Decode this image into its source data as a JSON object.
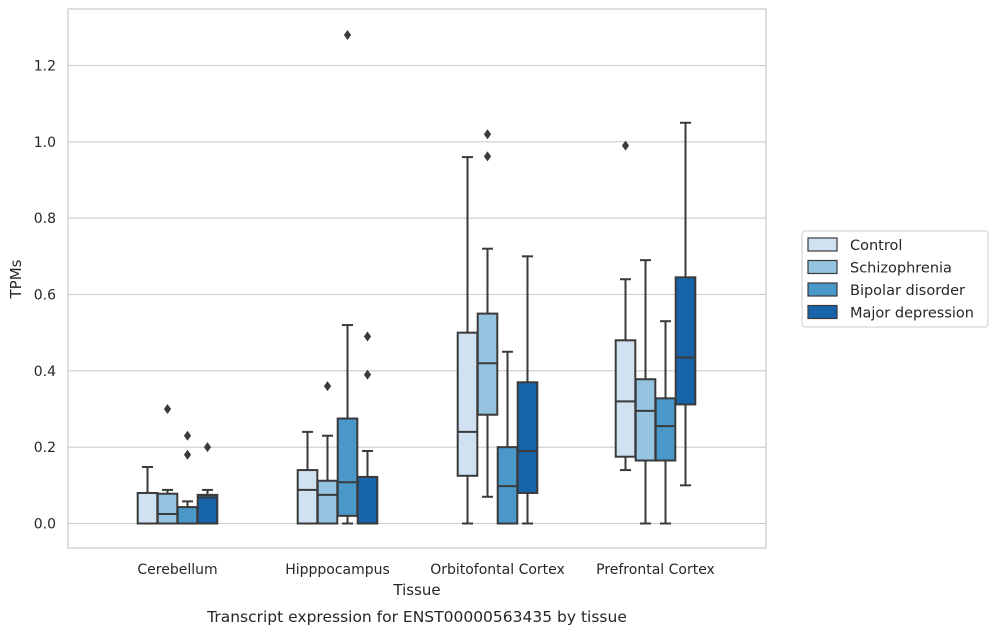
{
  "chart_data": {
    "type": "box",
    "title": "",
    "caption": "Transcript expression for ENST00000563435 by tissue",
    "xlabel": "Tissue",
    "ylabel": "TPMs",
    "ylim": [
      -0.063,
      1.345
    ],
    "yticks": [
      "0.0",
      "0.2",
      "0.4",
      "0.6",
      "0.8",
      "1.0",
      "1.2"
    ],
    "ytick_values": [
      0,
      0.2,
      0.4,
      0.6,
      0.8,
      1.0,
      1.2
    ],
    "grid": true,
    "legend_position": "right",
    "categories": [
      "Cerebellum",
      "Hipppocampus",
      "Orbitofontal Cortex",
      "Prefrontal Cortex"
    ],
    "series": [
      {
        "name": "Control",
        "color": "#d0e1f2",
        "boxes": [
          {
            "whislo": 0.0,
            "q1": 0.0,
            "med": 0.0,
            "q3": 0.08,
            "whishi": 0.148,
            "fliers": []
          },
          {
            "whislo": 0.0,
            "q1": 0.0,
            "med": 0.088,
            "q3": 0.14,
            "whishi": 0.24,
            "fliers": []
          },
          {
            "whislo": 0.0,
            "q1": 0.125,
            "med": 0.24,
            "q3": 0.5,
            "whishi": 0.96,
            "fliers": []
          },
          {
            "whislo": 0.14,
            "q1": 0.175,
            "med": 0.32,
            "q3": 0.48,
            "whishi": 0.64,
            "fliers": [
              0.99
            ]
          }
        ]
      },
      {
        "name": "Schizophrenia",
        "color": "#94c4df",
        "boxes": [
          {
            "whislo": 0.0,
            "q1": 0.0,
            "med": 0.025,
            "q3": 0.078,
            "whishi": 0.088,
            "fliers": [
              0.3
            ]
          },
          {
            "whislo": 0.0,
            "q1": 0.0,
            "med": 0.075,
            "q3": 0.112,
            "whishi": 0.23,
            "fliers": [
              0.36
            ]
          },
          {
            "whislo": 0.07,
            "q1": 0.285,
            "med": 0.42,
            "q3": 0.55,
            "whishi": 0.72,
            "fliers": [
              0.962,
              1.02
            ]
          },
          {
            "whislo": 0.0,
            "q1": 0.165,
            "med": 0.295,
            "q3": 0.378,
            "whishi": 0.69,
            "fliers": []
          }
        ]
      },
      {
        "name": "Bipolar disorder",
        "color": "#4a98c9",
        "boxes": [
          {
            "whislo": 0.0,
            "q1": 0.0,
            "med": 0.0,
            "q3": 0.043,
            "whishi": 0.058,
            "fliers": [
              0.18,
              0.23
            ]
          },
          {
            "whislo": 0.0,
            "q1": 0.02,
            "med": 0.108,
            "q3": 0.275,
            "whishi": 0.52,
            "fliers": [
              1.28
            ]
          },
          {
            "whislo": 0.0,
            "q1": 0.0,
            "med": 0.098,
            "q3": 0.2,
            "whishi": 0.45,
            "fliers": []
          },
          {
            "whislo": 0.0,
            "q1": 0.165,
            "med": 0.255,
            "q3": 0.328,
            "whishi": 0.53,
            "fliers": []
          }
        ]
      },
      {
        "name": "Major depression",
        "color": "#1764ab",
        "boxes": [
          {
            "whislo": 0.0,
            "q1": 0.0,
            "med": 0.068,
            "q3": 0.075,
            "whishi": 0.088,
            "fliers": [
              0.2
            ]
          },
          {
            "whislo": 0.0,
            "q1": 0.0,
            "med": 0.0,
            "q3": 0.122,
            "whishi": 0.19,
            "fliers": [
              0.39,
              0.49
            ]
          },
          {
            "whislo": 0.0,
            "q1": 0.08,
            "med": 0.19,
            "q3": 0.37,
            "whishi": 0.7,
            "fliers": []
          },
          {
            "whislo": 0.1,
            "q1": 0.312,
            "med": 0.435,
            "q3": 0.645,
            "whishi": 1.05,
            "fliers": []
          }
        ]
      }
    ]
  }
}
